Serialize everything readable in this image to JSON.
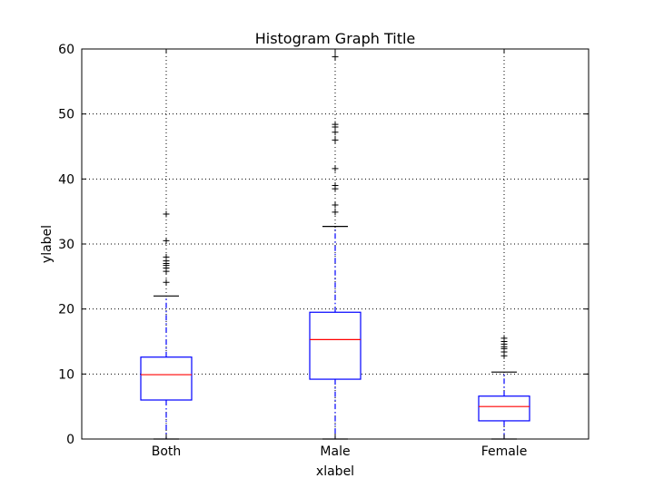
{
  "chart_data": {
    "type": "box",
    "title": "Histogram Graph Title",
    "xlabel": "xlabel",
    "ylabel": "ylabel",
    "ylim": [
      0,
      60
    ],
    "yticks": [
      0,
      10,
      20,
      30,
      40,
      50,
      60
    ],
    "grid": true,
    "categories": [
      "Both",
      "Male",
      "Female"
    ],
    "boxes": [
      {
        "name": "Both",
        "whisker_low": 0,
        "q1": 6.0,
        "median": 9.9,
        "q3": 12.6,
        "whisker_high": 22.0,
        "outliers": [
          24.1,
          25.8,
          26.3,
          26.7,
          27.0,
          27.4,
          28.0,
          30.5,
          34.6
        ]
      },
      {
        "name": "Male",
        "whisker_low": 0,
        "q1": 9.2,
        "median": 15.3,
        "q3": 19.5,
        "whisker_high": 32.7,
        "outliers": [
          34.9,
          36.0,
          38.5,
          39.0,
          41.6,
          46.0,
          47.2,
          48.0,
          48.4,
          58.8
        ]
      },
      {
        "name": "Female",
        "whisker_low": 0,
        "q1": 2.8,
        "median": 5.0,
        "q3": 6.6,
        "whisker_high": 10.3,
        "outliers": [
          12.8,
          13.4,
          13.9,
          14.2,
          14.6,
          15.0,
          15.5
        ]
      }
    ],
    "colors": {
      "box": "#0000ff",
      "median": "#ff0000",
      "whisker": "#0000ff",
      "cap": "#000000",
      "outlier": "#000000",
      "grid": "#000000"
    }
  }
}
